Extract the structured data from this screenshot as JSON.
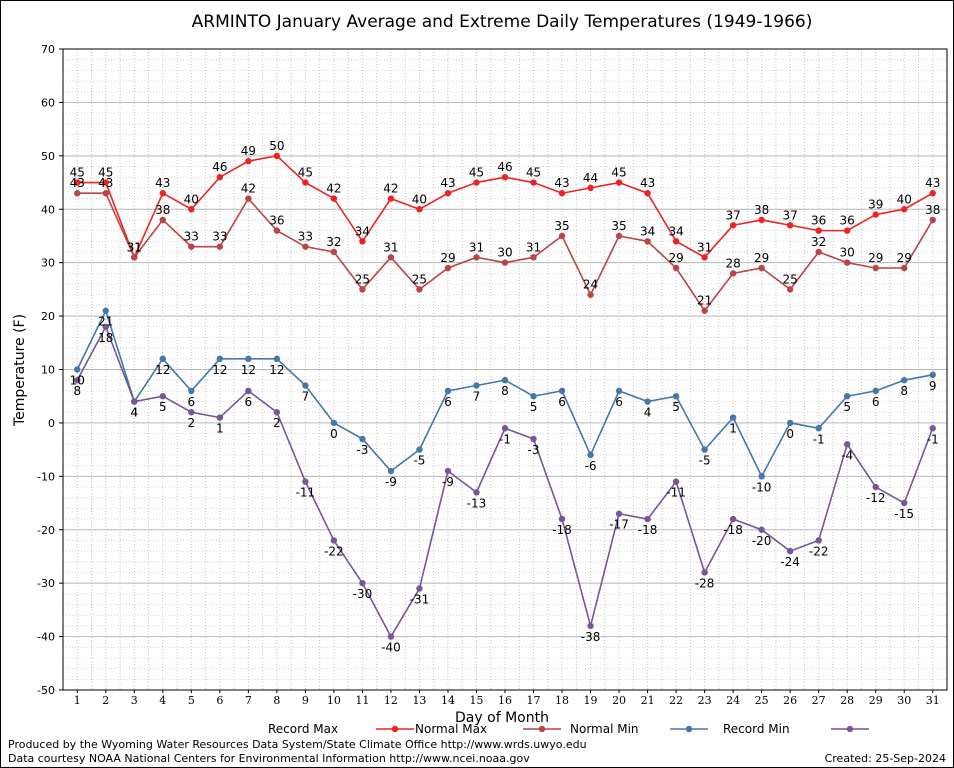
{
  "chart_data": {
    "type": "line",
    "title": "ARMINTO January Average and Extreme Daily Temperatures (1949-1966)",
    "xlabel": "Day of Month",
    "ylabel": "Temperature (F)",
    "ylim": [
      -50,
      70
    ],
    "yticks": [
      70,
      60,
      50,
      40,
      30,
      20,
      10,
      0,
      -10,
      -20,
      -30,
      -40,
      -50
    ],
    "x": [
      1,
      2,
      3,
      4,
      5,
      6,
      7,
      8,
      9,
      10,
      11,
      12,
      13,
      14,
      15,
      16,
      17,
      18,
      19,
      20,
      21,
      22,
      23,
      24,
      25,
      26,
      27,
      28,
      29,
      30,
      31
    ],
    "grid": true,
    "legend_position": "bottom",
    "series": [
      {
        "name": "Record Max",
        "color": "#ee2222",
        "values": [
          45,
          45,
          31,
          43,
          40,
          46,
          49,
          50,
          45,
          42,
          34,
          42,
          40,
          43,
          45,
          46,
          45,
          43,
          44,
          45,
          43,
          34,
          31,
          37,
          38,
          37,
          36,
          36,
          39,
          40,
          43
        ]
      },
      {
        "name": "Normal Max",
        "color": "#bb4444",
        "values": [
          43,
          43,
          31,
          38,
          33,
          33,
          42,
          36,
          33,
          32,
          25,
          31,
          25,
          29,
          31,
          30,
          31,
          35,
          24,
          35,
          34,
          29,
          21,
          28,
          29,
          25,
          32,
          30,
          29,
          29,
          38
        ]
      },
      {
        "name": "Normal Min",
        "color": "#4477aa",
        "values": [
          10,
          21,
          4,
          12,
          6,
          12,
          12,
          12,
          7,
          0,
          -3,
          -9,
          -5,
          6,
          7,
          8,
          5,
          6,
          -6,
          6,
          4,
          5,
          -5,
          1,
          -10,
          0,
          -1,
          5,
          6,
          8,
          9
        ]
      },
      {
        "name": "Record Min",
        "color": "#775599",
        "values": [
          8,
          18,
          4,
          5,
          2,
          1,
          6,
          2,
          -11,
          -22,
          -30,
          -40,
          -31,
          -9,
          -13,
          -1,
          -3,
          -18,
          -38,
          -17,
          -18,
          -11,
          -28,
          -18,
          -20,
          -24,
          -22,
          -4,
          -12,
          -15,
          -1
        ]
      }
    ]
  },
  "footer": {
    "line1": "Produced by the Wyoming Water Resources Data System/State Climate Office http://www.wrds.uwyo.edu",
    "line2": "Data courtesy NOAA National Centers for Environmental Information http://www.ncei.noaa.gov",
    "created": "Created:  25-Sep-2024"
  }
}
